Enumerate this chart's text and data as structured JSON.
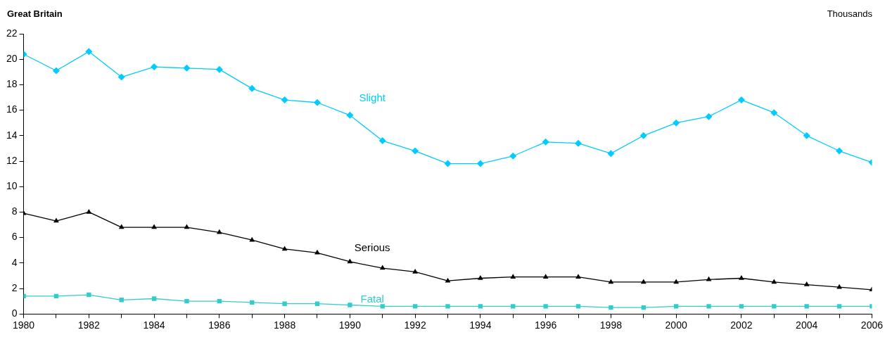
{
  "chart_data": {
    "type": "line",
    "title": "Great Britain",
    "ylabel": "Thousands",
    "x": [
      1980,
      1981,
      1982,
      1983,
      1984,
      1985,
      1986,
      1987,
      1988,
      1989,
      1990,
      1991,
      1992,
      1993,
      1994,
      1995,
      1996,
      1997,
      1998,
      1999,
      2000,
      2001,
      2002,
      2003,
      2004,
      2005,
      2006
    ],
    "xlim": [
      1980,
      2006
    ],
    "xticks": [
      1980,
      {
        "value": 1981,
        "label": null
      },
      1982,
      {
        "value": 1983,
        "label": null
      },
      1984,
      {
        "value": 1985,
        "label": null
      },
      1986,
      {
        "value": 1987,
        "label": null
      },
      1988,
      {
        "value": 1989,
        "label": null
      },
      1990,
      {
        "value": 1991,
        "label": null
      },
      1992,
      {
        "value": 1993,
        "label": null
      },
      1994,
      {
        "value": 1995,
        "label": null
      },
      1996,
      {
        "value": 1997,
        "label": null
      },
      1998,
      {
        "value": 1999,
        "label": null
      },
      2000,
      {
        "value": 2001,
        "label": null
      },
      2002,
      {
        "value": 2003,
        "label": null
      },
      2004,
      {
        "value": 2005,
        "label": null
      },
      2006
    ],
    "ylim": [
      0,
      22
    ],
    "yticks": [
      0,
      2,
      4,
      6,
      8,
      10,
      12,
      14,
      16,
      18,
      20,
      22
    ],
    "grid": false,
    "legend": false,
    "line_style": "solid",
    "series": [
      {
        "name": "Slight",
        "color": "#00ccff",
        "marker": "diamond",
        "values": [
          20.4,
          19.1,
          20.6,
          18.6,
          19.4,
          19.3,
          19.2,
          17.7,
          16.8,
          16.6,
          15.6,
          13.6,
          12.8,
          11.8,
          11.8,
          12.4,
          13.5,
          13.4,
          12.6,
          14.0,
          15.0,
          15.5,
          16.8,
          15.8,
          14.0,
          12.8,
          11.9
        ]
      },
      {
        "name": "Serious",
        "color": "#000000",
        "marker": "triangle",
        "values": [
          7.9,
          7.3,
          8.0,
          6.8,
          6.8,
          6.8,
          6.4,
          5.8,
          5.1,
          4.8,
          4.1,
          3.6,
          3.3,
          2.6,
          2.8,
          2.9,
          2.9,
          2.9,
          2.5,
          2.5,
          2.5,
          2.7,
          2.8,
          2.5,
          2.3,
          2.1,
          1.9
        ]
      },
      {
        "name": "Fatal",
        "color": "#33cccc",
        "marker": "square",
        "values": [
          1.4,
          1.4,
          1.5,
          1.1,
          1.2,
          1.0,
          1.0,
          0.9,
          0.8,
          0.8,
          0.7,
          0.6,
          0.6,
          0.6,
          0.6,
          0.6,
          0.6,
          0.6,
          0.5,
          0.5,
          0.6,
          0.6,
          0.6,
          0.6,
          0.6,
          0.6,
          0.6
        ]
      }
    ]
  }
}
